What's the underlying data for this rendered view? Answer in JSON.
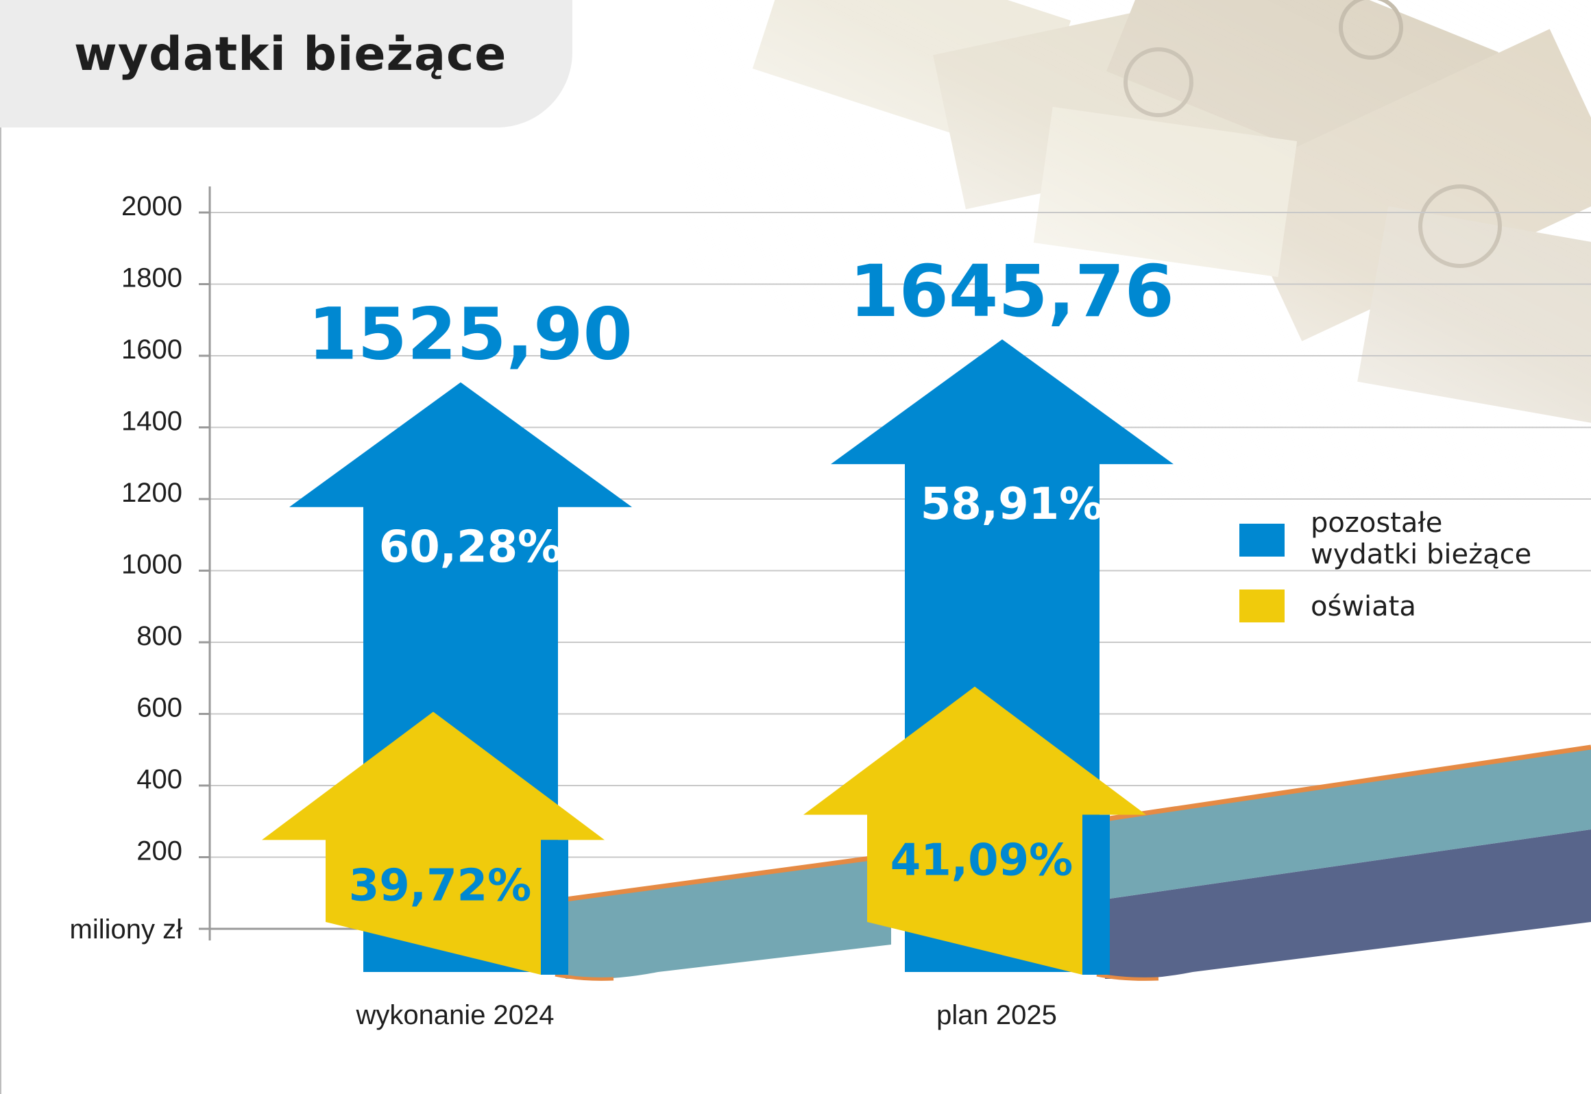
{
  "page": {
    "title": "wydatki bieżące"
  },
  "colors": {
    "blue": "#0088d1",
    "yellow": "#f0cb0c",
    "teal": "#74a7b3",
    "navy": "#58658b",
    "orange": "#e58a44",
    "grid": "#c8c8c8"
  },
  "chart_data": {
    "type": "bar",
    "stacked": true,
    "style": "arrow-shaped stacked bars",
    "unit_label": "miliony zł",
    "ylim": [
      0,
      2000
    ],
    "y_ticks": [
      "2000",
      "1800",
      "1600",
      "1400",
      "1200",
      "1000",
      "800",
      "600",
      "400",
      "200"
    ],
    "grid": true,
    "legend_position": "right",
    "categories": [
      "wykonanie 2024",
      "plan 2025"
    ],
    "totals": [
      1525.9,
      1645.76
    ],
    "total_labels": [
      "1525,90",
      "1645,76"
    ],
    "series": [
      {
        "name": "pozostałe wydatki bieżące",
        "color_key": "blue",
        "percent": [
          60.28,
          58.91
        ],
        "percent_labels": [
          "60,28%",
          "58,91%"
        ]
      },
      {
        "name": "oświata",
        "color_key": "yellow",
        "percent": [
          39.72,
          41.09
        ],
        "percent_labels": [
          "39,72%",
          "41,09%"
        ]
      }
    ]
  },
  "legend": [
    {
      "label": "pozostałe\nwydatki bieżące",
      "color_key": "blue"
    },
    {
      "label": "oświata",
      "color_key": "yellow"
    }
  ]
}
